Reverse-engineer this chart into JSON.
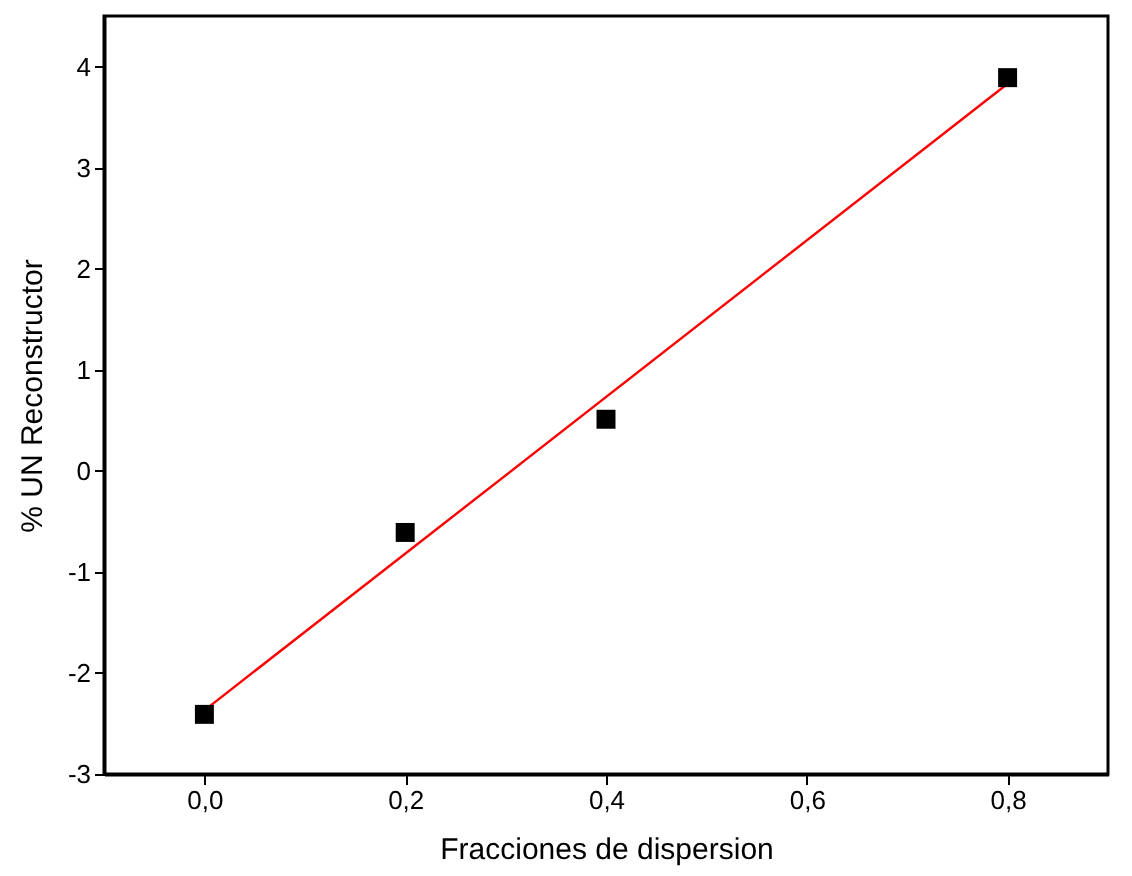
{
  "chart_data": {
    "type": "scatter",
    "xlabel": "Fracciones de dispersion",
    "ylabel": "% UN Reconstructor",
    "x": [
      0,
      0.2,
      0.4,
      0.8
    ],
    "series": [
      {
        "color": "#000000",
        "marker": "square",
        "values": [
          -2.41,
          -0.61,
          0.51,
          3.89
        ]
      },
      {
        "type": "line",
        "color": "#ff0000",
        "marker": "none",
        "line_style": "solid",
        "x": [
          0,
          0.8
        ],
        "values": [
          -2.37,
          3.83
        ]
      }
    ],
    "xlim": [
      -0.1,
      0.9
    ],
    "ylim": [
      -3,
      4.5
    ],
    "xticks": [
      {
        "value": 0,
        "label": "0,0"
      },
      {
        "value": 0.2,
        "label": "0,2"
      },
      {
        "value": 0.4,
        "label": "0,4"
      },
      {
        "value": 0.6,
        "label": "0,6"
      },
      {
        "value": 0.8,
        "label": "0,8"
      }
    ],
    "yticks": [
      -3,
      -2,
      -1,
      0,
      1,
      2,
      3,
      4
    ],
    "grid": false
  }
}
